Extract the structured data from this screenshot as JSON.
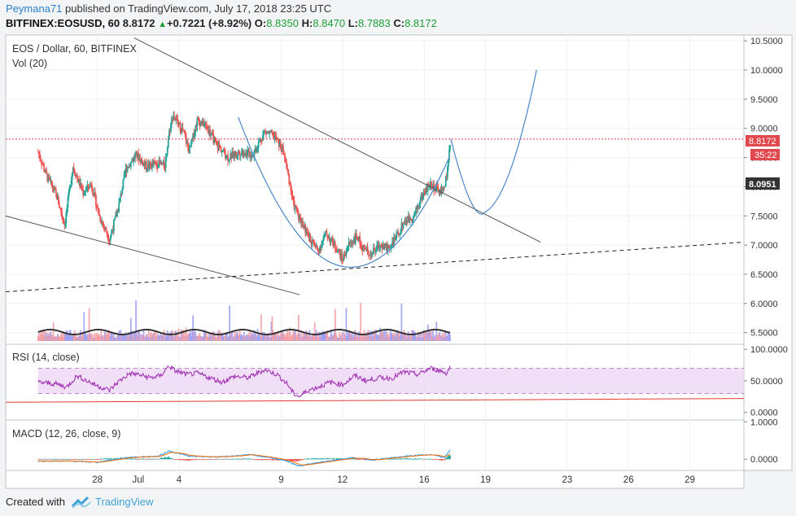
{
  "header": {
    "user": "Peymana71",
    "published_text": "published on TradingView.com, July 17, 2018 23:25 UTC",
    "symbol": "BITFINEX:EOSUSD, 60",
    "last": "8.8172",
    "change": "+0.7221 (+8.92%)",
    "o_label": "O:",
    "o_value": "8.8350",
    "h_label": "H:",
    "h_value": "8.8470",
    "l_label": "L:",
    "l_value": "8.7883",
    "c_label": "C:",
    "c_value": "8.8172"
  },
  "footer": {
    "created_with": "Created with",
    "brand": "TradingView"
  },
  "colors": {
    "up": "#26a69a",
    "down": "#ef5350",
    "wedge_line": "#555555",
    "dashed_line": "#222222",
    "cup_curve": "#4a86c8",
    "price_tag": "#e0484d",
    "dark_tag": "#333333",
    "rsi_fill": "#ecd3f4",
    "rsi_line": "#9c27b0",
    "macd_line": "#2196f3",
    "signal_line": "#ff6d00"
  },
  "chart_data": {
    "type": "candlestick",
    "title": "EOS / Dollar, 60, BITFINEX",
    "vol_label": "Vol (20)",
    "rsi_label": "RSI (14, close)",
    "macd_label": "MACD (12, 26, close, 9)",
    "price_ticks": [
      "10.5000",
      "10.0000",
      "9.5000",
      "9.0000",
      "8.5000",
      "8.0000",
      "7.5000",
      "7.0000",
      "6.5000",
      "6.0000",
      "5.5000"
    ],
    "price_range": [
      5.3,
      10.6
    ],
    "rsi_ticks": [
      "100.0000",
      "50.0000",
      "0.0000"
    ],
    "rsi_range": [
      -12,
      108
    ],
    "macd_ticks": [
      "1.0000",
      "0.0000"
    ],
    "macd_range": [
      -0.3,
      1.05
    ],
    "x_labels": [
      {
        "label": "28",
        "day": -4
      },
      {
        "label": "Jul",
        "day": -2
      },
      {
        "label": "4",
        "day": 0
      },
      {
        "label": "9",
        "day": 5
      },
      {
        "label": "12",
        "day": 8
      },
      {
        "label": "16",
        "day": 12
      },
      {
        "label": "19",
        "day": 15
      },
      {
        "label": "23",
        "day": 19
      },
      {
        "label": "26",
        "day": 22
      },
      {
        "label": "29",
        "day": 25
      }
    ],
    "last_price": "8.8172",
    "countdown": "35:22",
    "level_price": "8.0951",
    "anchors": [
      [
        -6.9,
        8.6
      ],
      [
        -6.5,
        8.2
      ],
      [
        -6.0,
        7.85
      ],
      [
        -5.6,
        7.35
      ],
      [
        -5.2,
        8.35
      ],
      [
        -4.7,
        7.9
      ],
      [
        -4.3,
        8.05
      ],
      [
        -3.9,
        7.5
      ],
      [
        -3.4,
        7.1
      ],
      [
        -3.0,
        7.6
      ],
      [
        -2.6,
        8.3
      ],
      [
        -2.1,
        8.55
      ],
      [
        -1.6,
        8.35
      ],
      [
        -1.0,
        8.4
      ],
      [
        -0.7,
        8.35
      ],
      [
        -0.5,
        8.9
      ],
      [
        -0.3,
        9.25
      ],
      [
        -0.1,
        9.1
      ],
      [
        0.2,
        8.95
      ],
      [
        0.5,
        8.6
      ],
      [
        0.9,
        9.15
      ],
      [
        1.3,
        9.05
      ],
      [
        1.8,
        8.75
      ],
      [
        2.4,
        8.5
      ],
      [
        3.0,
        8.6
      ],
      [
        3.6,
        8.55
      ],
      [
        4.2,
        8.95
      ],
      [
        4.7,
        8.85
      ],
      [
        5.1,
        8.6
      ],
      [
        5.4,
        8.1
      ],
      [
        5.6,
        7.7
      ],
      [
        6.0,
        7.4
      ],
      [
        6.4,
        7.1
      ],
      [
        6.8,
        6.9
      ],
      [
        7.2,
        7.2
      ],
      [
        7.7,
        6.95
      ],
      [
        8.0,
        6.75
      ],
      [
        8.3,
        7.0
      ],
      [
        8.7,
        7.15
      ],
      [
        9.0,
        6.95
      ],
      [
        9.4,
        6.85
      ],
      [
        9.8,
        7.0
      ],
      [
        10.2,
        6.95
      ],
      [
        10.6,
        7.1
      ],
      [
        11.0,
        7.4
      ],
      [
        11.5,
        7.5
      ],
      [
        11.9,
        7.85
      ],
      [
        12.3,
        8.05
      ],
      [
        12.6,
        7.95
      ],
      [
        12.9,
        7.9
      ],
      [
        13.1,
        8.2
      ],
      [
        13.3,
        8.82
      ]
    ],
    "last_day": 13.3,
    "rsi_anchors": [
      [
        -6.9,
        48
      ],
      [
        -6.0,
        45
      ],
      [
        -5.5,
        40
      ],
      [
        -5.0,
        58
      ],
      [
        -4.5,
        50
      ],
      [
        -4.0,
        42
      ],
      [
        -3.4,
        35
      ],
      [
        -3.0,
        48
      ],
      [
        -2.4,
        62
      ],
      [
        -2.0,
        60
      ],
      [
        -1.4,
        55
      ],
      [
        -0.9,
        58
      ],
      [
        -0.5,
        74
      ],
      [
        -0.2,
        66
      ],
      [
        0.4,
        60
      ],
      [
        0.9,
        62
      ],
      [
        1.5,
        55
      ],
      [
        2.1,
        48
      ],
      [
        2.7,
        57
      ],
      [
        3.4,
        55
      ],
      [
        4.2,
        68
      ],
      [
        4.8,
        60
      ],
      [
        5.3,
        45
      ],
      [
        5.6,
        30
      ],
      [
        5.9,
        25
      ],
      [
        6.3,
        35
      ],
      [
        6.8,
        40
      ],
      [
        7.4,
        48
      ],
      [
        8.0,
        44
      ],
      [
        8.6,
        58
      ],
      [
        9.2,
        50
      ],
      [
        9.8,
        55
      ],
      [
        10.4,
        54
      ],
      [
        11.0,
        64
      ],
      [
        11.7,
        60
      ],
      [
        12.3,
        70
      ],
      [
        12.8,
        66
      ],
      [
        13.1,
        62
      ],
      [
        13.3,
        74
      ]
    ],
    "rsi_bands": [
      70,
      30
    ],
    "macd_anchors": [
      [
        -6.9,
        -0.05
      ],
      [
        -5.5,
        -0.05
      ],
      [
        -4.0,
        -0.08
      ],
      [
        -2.5,
        0.05
      ],
      [
        -1.0,
        0.08
      ],
      [
        -0.5,
        0.22
      ],
      [
        0.5,
        0.08
      ],
      [
        2.0,
        0.06
      ],
      [
        3.5,
        0.12
      ],
      [
        4.5,
        0.04
      ],
      [
        5.3,
        -0.05
      ],
      [
        5.8,
        -0.18
      ],
      [
        6.5,
        -0.12
      ],
      [
        7.5,
        -0.03
      ],
      [
        8.5,
        0.04
      ],
      [
        9.5,
        -0.02
      ],
      [
        10.5,
        0.04
      ],
      [
        11.5,
        0.1
      ],
      [
        12.5,
        0.12
      ],
      [
        13.0,
        0.04
      ],
      [
        13.3,
        0.28
      ]
    ]
  }
}
